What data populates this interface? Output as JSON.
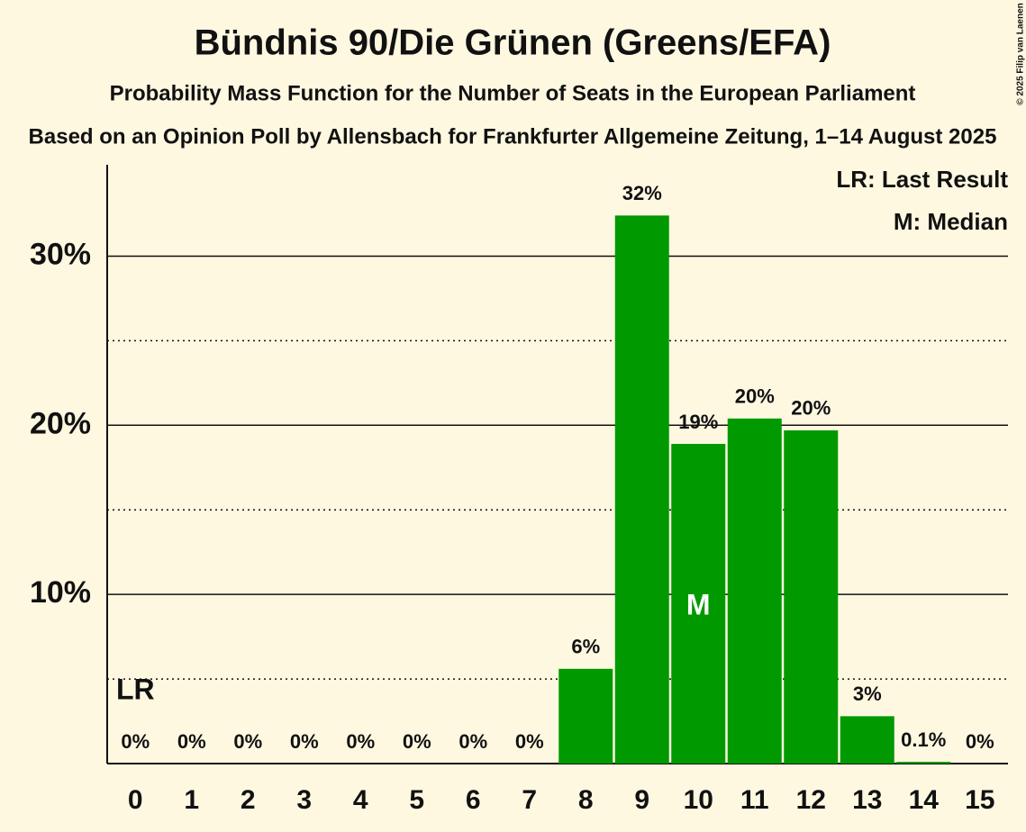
{
  "chart_data": {
    "type": "bar",
    "title": "Bündnis 90/Die Grünen (Greens/EFA)",
    "subtitle": "Probability Mass Function for the Number of Seats in the European Parliament",
    "caption": "Based on an Opinion Poll by Allensbach for Frankfurter Allgemeine Zeitung, 1–14 August 2025",
    "categories": [
      "0",
      "1",
      "2",
      "3",
      "4",
      "5",
      "6",
      "7",
      "8",
      "9",
      "10",
      "11",
      "12",
      "13",
      "14",
      "15"
    ],
    "values": [
      0,
      0,
      0,
      0,
      0,
      0,
      0,
      0,
      5.6,
      32.4,
      18.9,
      20.4,
      19.7,
      2.8,
      0.1,
      0
    ],
    "value_labels": [
      "0%",
      "0%",
      "0%",
      "0%",
      "0%",
      "0%",
      "0%",
      "0%",
      "6%",
      "32%",
      "19%",
      "20%",
      "20%",
      "3%",
      "0.1%",
      "0%"
    ],
    "color": "#009900",
    "ylim": [
      0,
      35.4
    ],
    "yticks": [
      {
        "value": 10,
        "label": "10%"
      },
      {
        "value": 20,
        "label": "20%"
      },
      {
        "value": 30,
        "label": "30%"
      }
    ],
    "minor_yticks": [
      5,
      15,
      25
    ],
    "grid": true,
    "annotations": [
      {
        "label": "LR",
        "category": "0"
      },
      {
        "label": "M",
        "category": "10"
      }
    ],
    "legend": [
      "LR: Last Result",
      "M: Median"
    ],
    "legend_position": "top-right",
    "copyright": "© 2025 Filip van Laenen"
  }
}
